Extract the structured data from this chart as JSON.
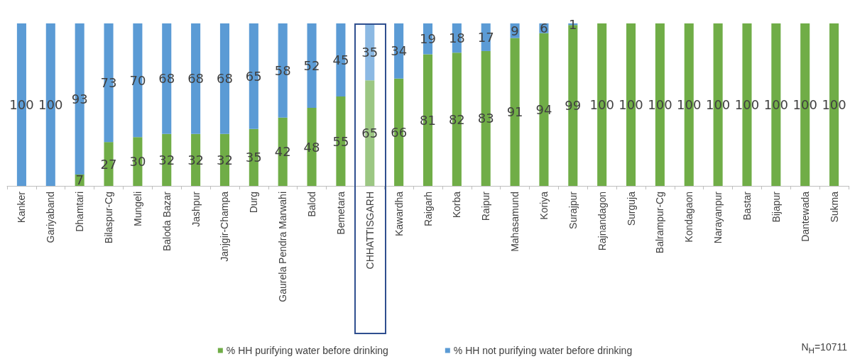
{
  "chart_data": {
    "type": "bar",
    "stacked": true,
    "categories": [
      "Kanker",
      "Gariyaband",
      "Dhamtari",
      "Bilaspur-Cg",
      "Mungeli",
      "Baloda Bazar",
      "Jashpur",
      "Janjgir-Champa",
      "Durg",
      "Gaurela Pendra Marwahi",
      "Balod",
      "Bemetara",
      "CHHATTISGARH",
      "Kawardha",
      "Raigarh",
      "Korba",
      "Raipur",
      "Mahasamund",
      "Koriya",
      "Surajpur",
      "Rajnandagon",
      "Surguja",
      "Balrampur-Cg",
      "Kondagaon",
      "Narayanpur",
      "Bastar",
      "Bijapur",
      "Dantewada",
      "Sukma"
    ],
    "series": [
      {
        "name": "% HH purifying water before drinking",
        "color": "#70ad47",
        "colors": [
          "#70ad47",
          "#70ad47",
          "#70ad47",
          "#70ad47",
          "#70ad47",
          "#70ad47",
          "#70ad47",
          "#70ad47",
          "#70ad47",
          "#70ad47",
          "#70ad47",
          "#70ad47",
          "#9cc783",
          "#70ad47",
          "#70ad47",
          "#70ad47",
          "#70ad47",
          "#70ad47",
          "#70ad47",
          "#70ad47",
          "#70ad47",
          "#70ad47",
          "#70ad47",
          "#70ad47",
          "#70ad47",
          "#70ad47",
          "#70ad47",
          "#70ad47",
          "#70ad47"
        ],
        "values": [
          0,
          0,
          7,
          27,
          30,
          32,
          32,
          32,
          35,
          42,
          48,
          55,
          65,
          66,
          81,
          82,
          83,
          91,
          94,
          99,
          100,
          100,
          100,
          100,
          100,
          100,
          100,
          100,
          100
        ],
        "value_labels": [
          null,
          null,
          "7",
          "27",
          "30",
          "32",
          "32",
          "32",
          "35",
          "42",
          "48",
          "55",
          "65",
          "66",
          "81",
          "82",
          "83",
          "91",
          "94",
          "99",
          "100",
          "100",
          "100",
          "100",
          "100",
          "100",
          "100",
          "100",
          "100"
        ]
      },
      {
        "name": "% HH not purifying water before drinking",
        "color": "#5b9bd5",
        "colors": [
          "#5b9bd5",
          "#5b9bd5",
          "#5b9bd5",
          "#5b9bd5",
          "#5b9bd5",
          "#5b9bd5",
          "#5b9bd5",
          "#5b9bd5",
          "#5b9bd5",
          "#5b9bd5",
          "#5b9bd5",
          "#5b9bd5",
          "#8cb9e3",
          "#5b9bd5",
          "#5b9bd5",
          "#5b9bd5",
          "#5b9bd5",
          "#5b9bd5",
          "#5b9bd5",
          "#5b9bd5",
          "#5b9bd5",
          "#5b9bd5",
          "#5b9bd5",
          "#5b9bd5",
          "#5b9bd5",
          "#5b9bd5",
          "#5b9bd5",
          "#5b9bd5",
          "#5b9bd5"
        ],
        "values": [
          100,
          100,
          93,
          73,
          70,
          68,
          68,
          68,
          65,
          58,
          52,
          45,
          35,
          34,
          19,
          18,
          17,
          9,
          6,
          1,
          0,
          0,
          0,
          0,
          0,
          0,
          0,
          0,
          0
        ],
        "value_labels": [
          "100",
          "100",
          "93",
          "73",
          "70",
          "68",
          "68",
          "68",
          "65",
          "58",
          "52",
          "45",
          "35",
          "34",
          "19",
          "18",
          "17",
          "9",
          "6",
          "1",
          null,
          null,
          null,
          null,
          null,
          null,
          null,
          null,
          null
        ]
      }
    ],
    "legend": "bottom",
    "annotations": [
      "N$_{H}$=10711"
    ]
  }
}
